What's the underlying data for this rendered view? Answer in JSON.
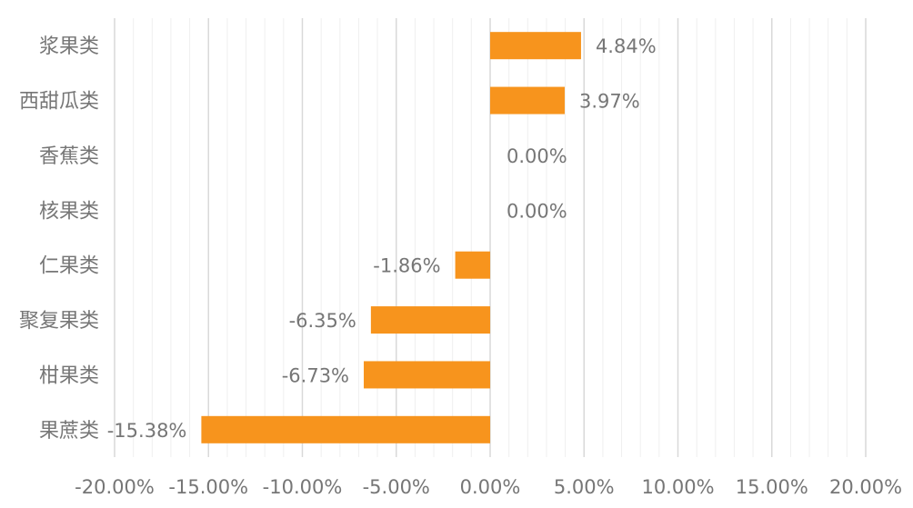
{
  "chart_data": {
    "type": "bar",
    "orientation": "horizontal",
    "categories": [
      "浆果类",
      "西甜瓜类",
      "香蕉类",
      "核果类",
      "仁果类",
      "聚复果类",
      "柑果类",
      "果蔗类"
    ],
    "values": [
      4.84,
      3.97,
      0.0,
      0.0,
      -1.86,
      -6.35,
      -6.73,
      -15.38
    ],
    "data_labels": [
      "4.84%",
      "3.97%",
      "0.00%",
      "0.00%",
      "-1.86%",
      "-6.35%",
      "-6.73%",
      "-15.38%"
    ],
    "xlim": [
      -20,
      20
    ],
    "x_ticks": [
      -20,
      -15,
      -10,
      -5,
      0,
      5,
      10,
      15,
      20
    ],
    "x_tick_labels": [
      "-20.00%",
      "-15.00%",
      "-10.00%",
      "-5.00%",
      "0.00%",
      "5.00%",
      "10.00%",
      "15.00%",
      "20.00%"
    ],
    "grid": true,
    "legend": "none",
    "bar_color": "#F7941D",
    "grid_color": "#D9D9D9",
    "text_color": "#767676"
  }
}
